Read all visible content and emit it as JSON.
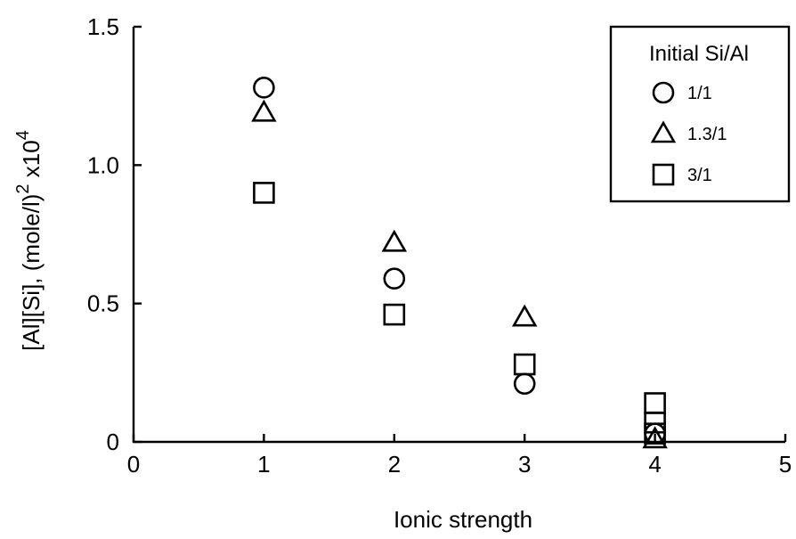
{
  "chart_data": {
    "type": "scatter",
    "xlabel": "Ionic strength",
    "ylabel": "[Al][Si], (mole/l)",
    "ylabel_exp1": "2",
    "ylabel_mid": " x10",
    "ylabel_exp2": "4",
    "xlim": [
      0,
      5
    ],
    "ylim": [
      0,
      1.5
    ],
    "x_ticks": [
      0,
      1,
      2,
      3,
      4,
      5
    ],
    "x_tick_labels": [
      "0",
      "1",
      "2",
      "3",
      "4",
      "5"
    ],
    "y_ticks": [
      0,
      0.5,
      1.0,
      1.5
    ],
    "y_tick_labels": [
      "0",
      "0.5",
      "1.0",
      "1.5"
    ],
    "grid": false,
    "legend": {
      "title": "Initial Si/Al",
      "placement": "top-right"
    },
    "series": [
      {
        "name": "1/1",
        "marker": "circle",
        "points": [
          [
            1,
            1.28
          ],
          [
            2,
            0.59
          ],
          [
            3,
            0.21
          ],
          [
            4,
            0.03
          ]
        ]
      },
      {
        "name": "1.3/1",
        "marker": "triangle",
        "points": [
          [
            1,
            1.19
          ],
          [
            2,
            0.72
          ],
          [
            3,
            0.45
          ],
          [
            4,
            0.01
          ]
        ]
      },
      {
        "name": "3/1",
        "marker": "square",
        "points": [
          [
            1,
            0.9
          ],
          [
            2,
            0.46
          ],
          [
            3,
            0.28
          ],
          [
            4,
            0.14
          ],
          [
            4,
            0.07
          ],
          [
            4,
            0.03
          ]
        ]
      }
    ]
  }
}
